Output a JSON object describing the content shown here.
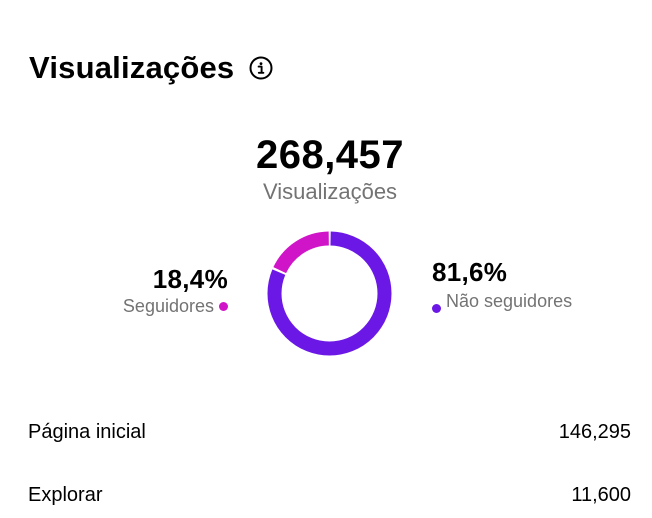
{
  "header": {
    "title": "Visualizações",
    "info_icon": "info-circle-icon"
  },
  "summary": {
    "total": "268,457",
    "total_label": "Visualizações"
  },
  "breakdown": {
    "followers": {
      "percent": "18,4%",
      "label": "Seguidores",
      "fraction": 0.184,
      "color": "#d015c9"
    },
    "non_followers": {
      "percent": "81,6%",
      "label": "Não seguidores",
      "fraction": 0.816,
      "color": "#6b17e6"
    }
  },
  "sources": [
    {
      "label": "Página inicial",
      "value": "146,295"
    },
    {
      "label": "Explorar",
      "value": "11,600"
    }
  ]
}
